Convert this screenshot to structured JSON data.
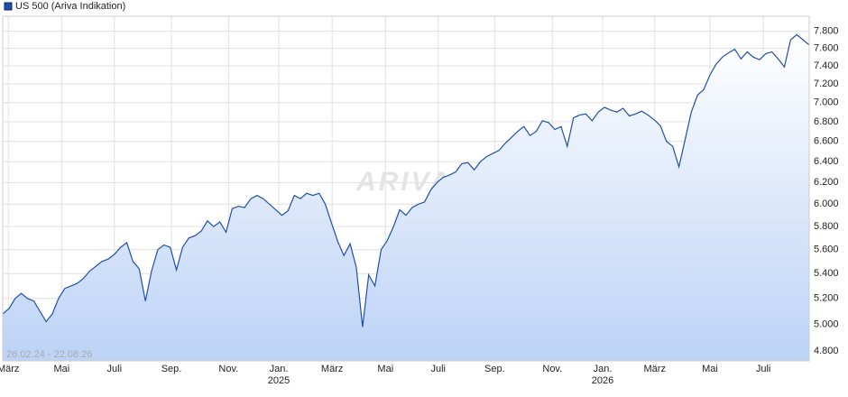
{
  "chart_data": {
    "type": "area",
    "series": [
      {
        "name": "US 500 (Ariva Indikation)",
        "color": "#1f4fa8",
        "values": [
          5080,
          5120,
          5200,
          5240,
          5200,
          5180,
          5100,
          5020,
          5080,
          5200,
          5280,
          5300,
          5320,
          5360,
          5420,
          5460,
          5500,
          5520,
          5560,
          5620,
          5660,
          5500,
          5440,
          5180,
          5420,
          5600,
          5640,
          5620,
          5430,
          5620,
          5700,
          5720,
          5760,
          5850,
          5800,
          5840,
          5750,
          5960,
          5980,
          5970,
          6050,
          6080,
          6050,
          6000,
          5950,
          5900,
          5940,
          6080,
          6050,
          6100,
          6080,
          6100,
          6000,
          5830,
          5670,
          5550,
          5650,
          5450,
          4980,
          5390,
          5300,
          5600,
          5680,
          5800,
          5950,
          5900,
          5970,
          6000,
          6020,
          6130,
          6200,
          6250,
          6270,
          6300,
          6380,
          6390,
          6320,
          6400,
          6450,
          6480,
          6510,
          6580,
          6640,
          6700,
          6750,
          6660,
          6700,
          6810,
          6790,
          6720,
          6750,
          6550,
          6840,
          6870,
          6880,
          6810,
          6900,
          6950,
          6920,
          6900,
          6940,
          6860,
          6880,
          6910,
          6870,
          6820,
          6760,
          6600,
          6550,
          6350,
          6620,
          6900,
          7080,
          7140,
          7300,
          7420,
          7500,
          7550,
          7590,
          7480,
          7560,
          7500,
          7470,
          7540,
          7560,
          7480,
          7390,
          7700,
          7760,
          7700,
          7640
        ]
      }
    ],
    "date_range": "26.02.24 - 22.08.26",
    "watermark": "ARIVA",
    "xlim": [
      0,
      130
    ],
    "xticks": [
      {
        "value": 0.9,
        "label": "März"
      },
      {
        "value": 9.5,
        "label": "Mai"
      },
      {
        "value": 18,
        "label": "Juli"
      },
      {
        "value": 27.2,
        "label": "Sep."
      },
      {
        "value": 36.4,
        "label": "Nov."
      },
      {
        "value": 44.5,
        "label": "Jan.\n2025"
      },
      {
        "value": 53.1,
        "label": "März"
      },
      {
        "value": 61.7,
        "label": "Mai"
      },
      {
        "value": 70.2,
        "label": "Juli"
      },
      {
        "value": 79.3,
        "label": "Sep."
      },
      {
        "value": 88.6,
        "label": "Nov."
      },
      {
        "value": 96.7,
        "label": "Jan.\n2026"
      },
      {
        "value": 105.1,
        "label": "März"
      },
      {
        "value": 114,
        "label": "Mai"
      },
      {
        "value": 122.6,
        "label": "Juli"
      }
    ],
    "ylim": [
      4730,
      7980
    ],
    "log_scale": true,
    "grid": true,
    "yticks": [
      {
        "value": 4800,
        "label": "4.800"
      },
      {
        "value": 5000,
        "label": "5.000"
      },
      {
        "value": 5200,
        "label": "5.200"
      },
      {
        "value": 5400,
        "label": "5.400"
      },
      {
        "value": 5600,
        "label": "5.600"
      },
      {
        "value": 5800,
        "label": "5.800"
      },
      {
        "value": 6000,
        "label": "6.000"
      },
      {
        "value": 6200,
        "label": "6.200"
      },
      {
        "value": 6400,
        "label": "6.400"
      },
      {
        "value": 6600,
        "label": "6.600"
      },
      {
        "value": 6800,
        "label": "6.800"
      },
      {
        "value": 7000,
        "label": "7.000"
      },
      {
        "value": 7200,
        "label": "7.200"
      },
      {
        "value": 7400,
        "label": "7.400"
      },
      {
        "value": 7600,
        "label": "7.600"
      },
      {
        "value": 7800,
        "label": "7.800"
      }
    ]
  }
}
